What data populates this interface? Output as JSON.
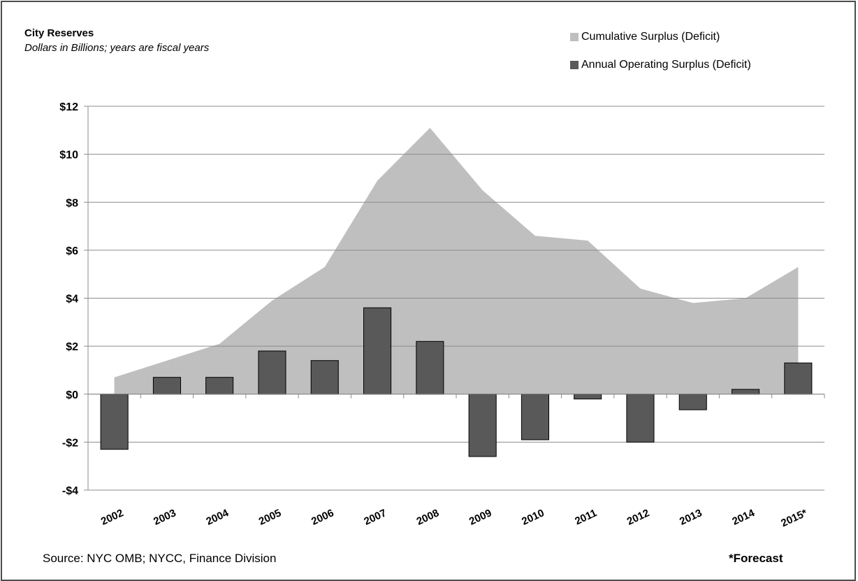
{
  "chart_data": {
    "type": "bar",
    "title": "City Reserves",
    "subtitle": "Dollars in Billions; years are fiscal years",
    "categories": [
      "2002",
      "2003",
      "2004",
      "2005",
      "2006",
      "2007",
      "2008",
      "2009",
      "2010",
      "2011",
      "2012",
      "2013",
      "2014",
      "2015*"
    ],
    "series": [
      {
        "name": "Cumulative Surplus (Deficit)",
        "type": "area",
        "color": "#bfbfbf",
        "values": [
          0.7,
          1.4,
          2.1,
          3.9,
          5.3,
          8.9,
          11.1,
          8.5,
          6.6,
          6.4,
          4.4,
          3.8,
          4.0,
          5.3
        ]
      },
      {
        "name": "Annual Operating Surplus (Deficit)",
        "type": "bar",
        "color": "#595959",
        "values": [
          -2.3,
          0.7,
          0.7,
          1.8,
          1.4,
          3.6,
          2.2,
          -2.6,
          -1.9,
          -0.2,
          -2.0,
          -0.65,
          0.2,
          1.3
        ]
      }
    ],
    "ylim": [
      -4,
      12
    ],
    "yticks": [
      12,
      10,
      8,
      6,
      4,
      2,
      0,
      -2,
      -4
    ],
    "ytick_labels": [
      "$12",
      "$10",
      "$8",
      "$6",
      "$4",
      "$2",
      "$0",
      "-$2",
      "-$4"
    ],
    "grid": true,
    "legend": "top-right"
  },
  "footer": {
    "source": "Source: NYC OMB; NYCC, Finance Division",
    "note": "*Forecast"
  }
}
